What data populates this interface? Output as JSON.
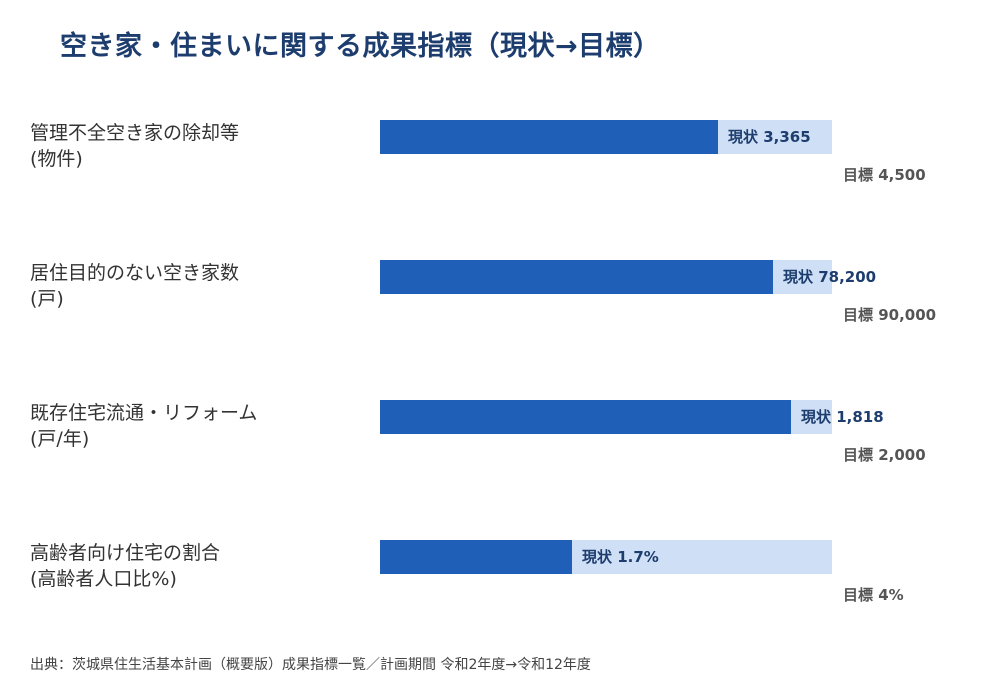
{
  "chart_data": {
    "type": "bar",
    "title": "空き家・住まいに関する成果指標（現状→目標）",
    "current_prefix": "現状",
    "target_prefix": "目標",
    "items": [
      {
        "label": "管理不全空き家の除却等",
        "unit_label": "(物件)",
        "current": 3365,
        "target": 4500,
        "current_text": "3,365",
        "target_text": "4,500"
      },
      {
        "label": "居住目的のない空き家数",
        "unit_label": "(戸)",
        "current": 78200,
        "target": 90000,
        "current_text": "78,200",
        "target_text": "90,000"
      },
      {
        "label": "既存住宅流通・リフォーム",
        "unit_label": "(戸/年)",
        "current": 1818,
        "target": 2000,
        "current_text": "1,818",
        "target_text": "2,000"
      },
      {
        "label": "高齢者向け住宅の割合",
        "unit_label": "(高齢者人口比%)",
        "current": 1.7,
        "target": 4,
        "current_text": "1.7%",
        "target_text": "4%"
      }
    ],
    "source": "出典：茨城県住生活基本計画（概要版）成果指標一覧／計画期間 令和2年度→令和12年度"
  },
  "colors": {
    "title": "#1d3d6e",
    "current_bar": "#1f5fb8",
    "target_bar": "#cfe0f6",
    "target_text": "#555555"
  }
}
